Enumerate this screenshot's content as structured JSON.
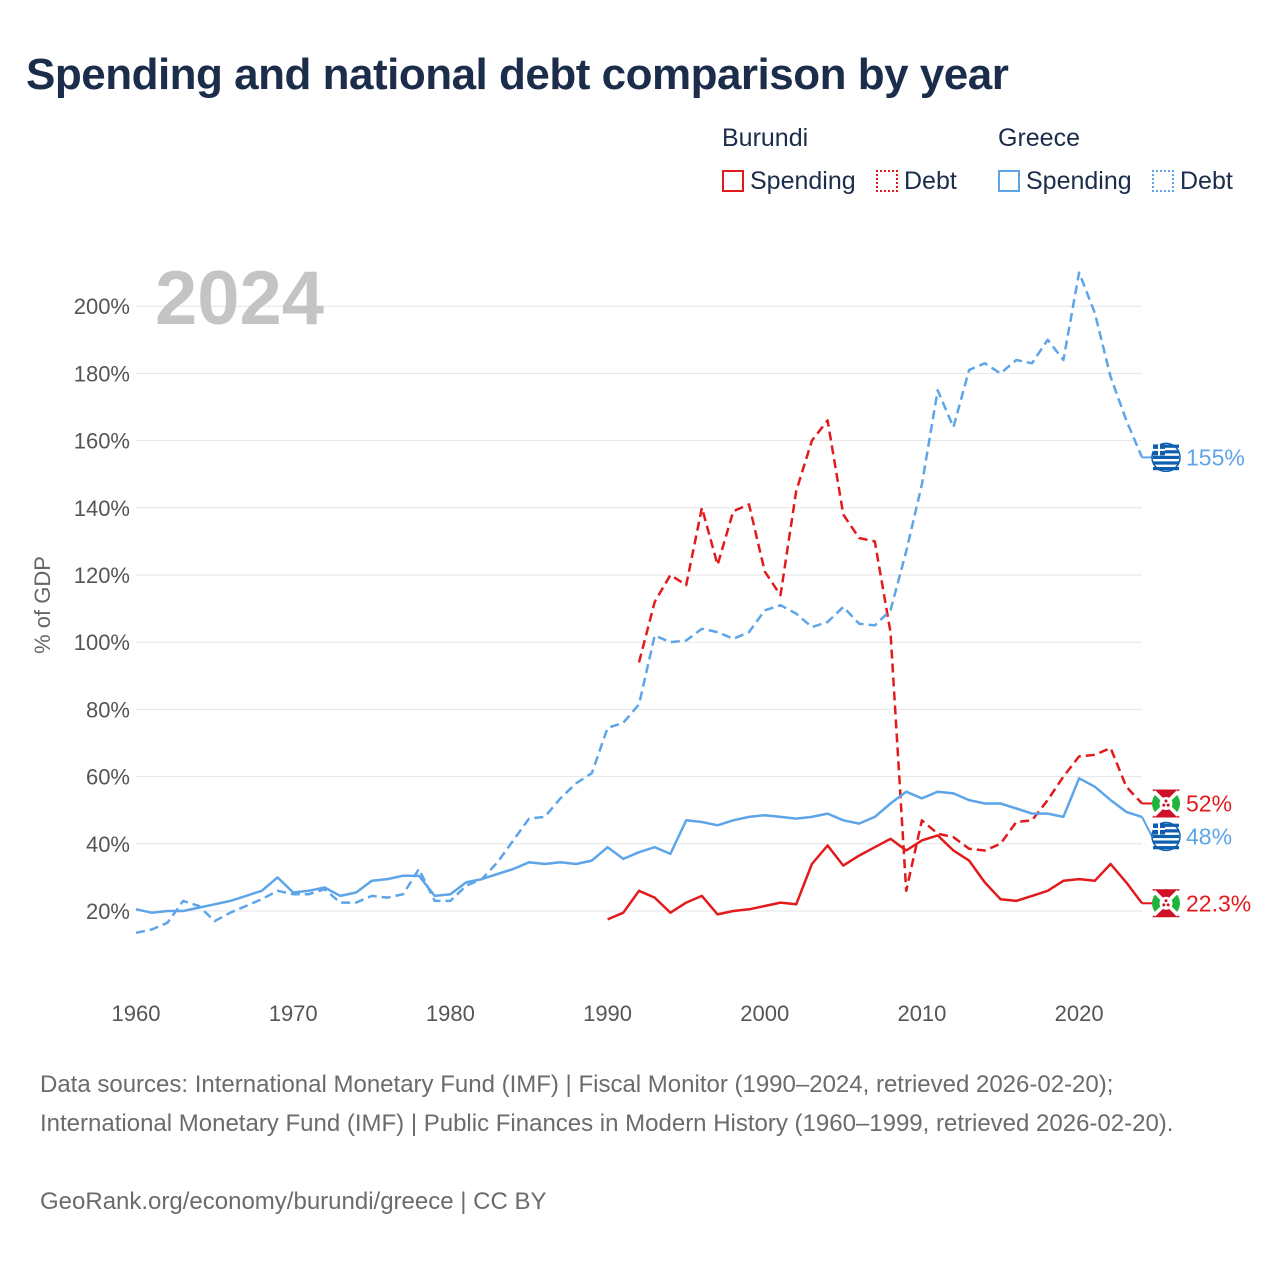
{
  "title": "Spending and national debt comparison by year",
  "legend": {
    "groups": [
      {
        "country": "Burundi",
        "spending_label": "Spending",
        "debt_label": "Debt"
      },
      {
        "country": "Greece",
        "spending_label": "Spending",
        "debt_label": "Debt"
      }
    ]
  },
  "colors": {
    "burundi": "#e31a1c",
    "greece": "#5da5e8",
    "grid": "#e6e6e6",
    "year_watermark": "#c4c4c4"
  },
  "footer": {
    "sources": "Data sources: International Monetary Fund (IMF) | Fiscal Monitor (1990–2024, retrieved 2026-02-20); International Monetary Fund (IMF) | Public Finances in Modern History (1960–1999, retrieved 2026-02-20).",
    "credit": "GeoRank.org/economy/burundi/greece | CC BY"
  },
  "chart_data": {
    "type": "line",
    "title": "Spending and national debt comparison by year",
    "year_label": "2024",
    "ylabel": "% of GDP",
    "xlabel": "",
    "xlim": [
      1960,
      2024
    ],
    "ylim": [
      0,
      215
    ],
    "x_ticks": [
      1960,
      1970,
      1980,
      1990,
      2000,
      2010,
      2020
    ],
    "y_ticks": [
      20,
      40,
      60,
      80,
      100,
      120,
      140,
      160,
      180,
      200
    ],
    "y_tick_labels": [
      "20%",
      "40%",
      "60%",
      "80%",
      "100%",
      "120%",
      "140%",
      "160%",
      "180%",
      "200%"
    ],
    "grid": true,
    "series": [
      {
        "name": "Burundi Spending",
        "country": "Burundi",
        "style": "solid",
        "color": "#e31a1c",
        "end_label": "22.3%",
        "end_value": 22.3,
        "x": [
          1990,
          1991,
          1992,
          1993,
          1994,
          1995,
          1996,
          1997,
          1998,
          1999,
          2000,
          2001,
          2002,
          2003,
          2004,
          2005,
          2006,
          2007,
          2008,
          2009,
          2010,
          2011,
          2012,
          2013,
          2014,
          2015,
          2016,
          2017,
          2018,
          2019,
          2020,
          2021,
          2022,
          2023,
          2024
        ],
        "values": [
          17.5,
          19.5,
          26,
          24,
          19.5,
          22.5,
          24.5,
          19,
          20,
          20.5,
          21.5,
          22.5,
          22,
          34,
          39.5,
          33.5,
          36.5,
          39,
          41.5,
          38,
          41,
          42.5,
          38,
          35,
          28.5,
          23.5,
          23,
          24.5,
          26,
          29,
          29.5,
          29,
          34,
          28.5,
          22.3
        ]
      },
      {
        "name": "Burundi Debt",
        "country": "Burundi",
        "style": "dashed",
        "color": "#e31a1c",
        "end_label": "52%",
        "end_value": 52,
        "x": [
          1992,
          1993,
          1994,
          1995,
          1996,
          1997,
          1998,
          1999,
          2000,
          2001,
          2002,
          2003,
          2004,
          2005,
          2006,
          2007,
          2008,
          2009,
          2010,
          2011,
          2012,
          2013,
          2014,
          2015,
          2016,
          2017,
          2018,
          2019,
          2020,
          2021,
          2022,
          2023,
          2024
        ],
        "values": [
          94,
          112,
          120,
          117,
          140,
          123,
          139,
          141,
          121,
          114,
          145,
          160,
          166,
          138,
          131,
          130,
          103,
          26,
          47,
          43,
          42,
          38.5,
          38,
          40,
          46.5,
          47,
          53,
          60,
          66,
          66.5,
          68.5,
          57,
          52
        ]
      },
      {
        "name": "Greece Spending",
        "country": "Greece",
        "style": "solid",
        "color": "#5da5e8",
        "end_label": "48%",
        "end_value": 48,
        "x": [
          1960,
          1961,
          1962,
          1963,
          1964,
          1965,
          1966,
          1967,
          1968,
          1969,
          1970,
          1971,
          1972,
          1973,
          1974,
          1975,
          1976,
          1977,
          1978,
          1979,
          1980,
          1981,
          1982,
          1983,
          1984,
          1985,
          1986,
          1987,
          1988,
          1989,
          1990,
          1991,
          1992,
          1993,
          1994,
          1995,
          1996,
          1997,
          1998,
          1999,
          2000,
          2001,
          2002,
          2003,
          2004,
          2005,
          2006,
          2007,
          2008,
          2009,
          2010,
          2011,
          2012,
          2013,
          2014,
          2015,
          2016,
          2017,
          2018,
          2019,
          2020,
          2021,
          2022,
          2023,
          2024
        ],
        "values": [
          20.5,
          19.5,
          20,
          20,
          21,
          22,
          23,
          24.5,
          26,
          30,
          25.5,
          26,
          27,
          24.5,
          25.5,
          29,
          29.5,
          30.5,
          30.5,
          24.5,
          25,
          28.5,
          29.5,
          31,
          32.5,
          34.5,
          34,
          34.5,
          34,
          35,
          39,
          35.5,
          37.5,
          39,
          37,
          47,
          46.5,
          45.5,
          47,
          48,
          48.5,
          48,
          47.5,
          48,
          49,
          47,
          46,
          48,
          52,
          55.5,
          53.5,
          55.5,
          55,
          53,
          52,
          52,
          50.5,
          49,
          49,
          48,
          59.5,
          57,
          53,
          49.5,
          48
        ]
      },
      {
        "name": "Greece Debt",
        "country": "Greece",
        "style": "dashed",
        "color": "#5da5e8",
        "end_label": "155%",
        "end_value": 155,
        "x": [
          1960,
          1961,
          1962,
          1963,
          1964,
          1965,
          1966,
          1967,
          1968,
          1969,
          1970,
          1971,
          1972,
          1973,
          1974,
          1975,
          1976,
          1977,
          1978,
          1979,
          1980,
          1981,
          1982,
          1983,
          1984,
          1985,
          1986,
          1987,
          1988,
          1989,
          1990,
          1991,
          1992,
          1993,
          1994,
          1995,
          1996,
          1997,
          1998,
          1999,
          2000,
          2001,
          2002,
          2003,
          2004,
          2005,
          2006,
          2007,
          2008,
          2009,
          2010,
          2011,
          2012,
          2013,
          2014,
          2015,
          2016,
          2017,
          2018,
          2019,
          2020,
          2021,
          2022,
          2023,
          2024
        ],
        "values": [
          13.5,
          14.5,
          16.5,
          23,
          21.5,
          17,
          19.5,
          21.5,
          23.5,
          26,
          25,
          25,
          26.5,
          22.5,
          22.5,
          24.5,
          24,
          25,
          32.5,
          23,
          23,
          27.5,
          29.5,
          34.5,
          41,
          47.5,
          48,
          53.5,
          58,
          61,
          74.5,
          76,
          81.5,
          102,
          100,
          100.5,
          104,
          103,
          101,
          103,
          109.5,
          111,
          108.5,
          104.5,
          106,
          110.5,
          105.5,
          105,
          109.5,
          127,
          147,
          175,
          164,
          181,
          183,
          180,
          184,
          183,
          190,
          184,
          210,
          198,
          179,
          166,
          155
        ]
      }
    ]
  }
}
